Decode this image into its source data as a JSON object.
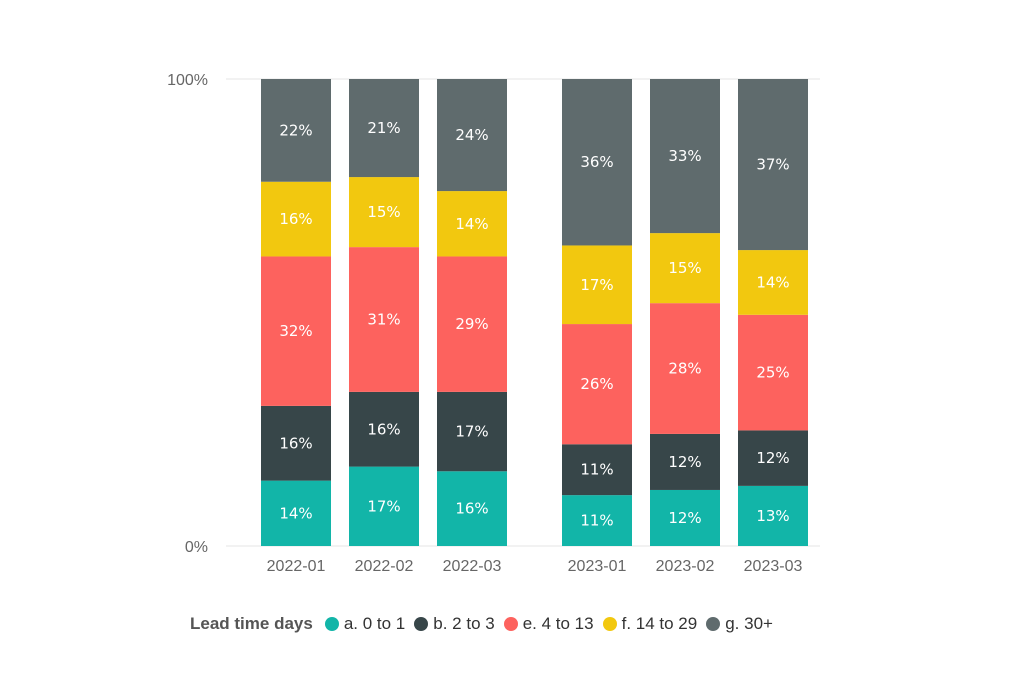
{
  "chart_data": {
    "type": "bar",
    "stacked": "percent",
    "title": "",
    "xlabel": "",
    "ylabel": "",
    "ylim": [
      0,
      100
    ],
    "y_ticks": [
      "0%",
      "100%"
    ],
    "grid": true,
    "legend_position": "bottom",
    "legend_title": "Lead time days",
    "categories": [
      "2022-01",
      "2022-02",
      "2022-03",
      "2023-01",
      "2023-02",
      "2023-03"
    ],
    "series": [
      {
        "name": "a. 0 to 1",
        "color": "#12b5a8",
        "values": [
          14,
          17,
          16,
          11,
          12,
          13
        ],
        "labels": [
          "14%",
          "17%",
          "16%",
          "11%",
          "12%",
          "13%"
        ]
      },
      {
        "name": "b. 2 to 3",
        "color": "#374649",
        "values": [
          16,
          16,
          17,
          11,
          12,
          12
        ],
        "labels": [
          "16%",
          "16%",
          "17%",
          "11%",
          "12%",
          "12%"
        ]
      },
      {
        "name": "e. 4 to 13",
        "color": "#fd625e",
        "values": [
          32,
          31,
          29,
          26,
          28,
          25
        ],
        "labels": [
          "32%",
          "31%",
          "29%",
          "26%",
          "28%",
          "25%"
        ]
      },
      {
        "name": "f. 14 to 29",
        "color": "#f2c80f",
        "values": [
          16,
          15,
          14,
          17,
          15,
          14
        ],
        "labels": [
          "16%",
          "15%",
          "14%",
          "17%",
          "15%",
          "14%"
        ]
      },
      {
        "name": "g. 30+",
        "color": "#5f6b6d",
        "values": [
          22,
          21,
          24,
          36,
          33,
          37
        ],
        "labels": [
          "22%",
          "21%",
          "24%",
          "36%",
          "33%",
          "37%"
        ]
      }
    ]
  }
}
